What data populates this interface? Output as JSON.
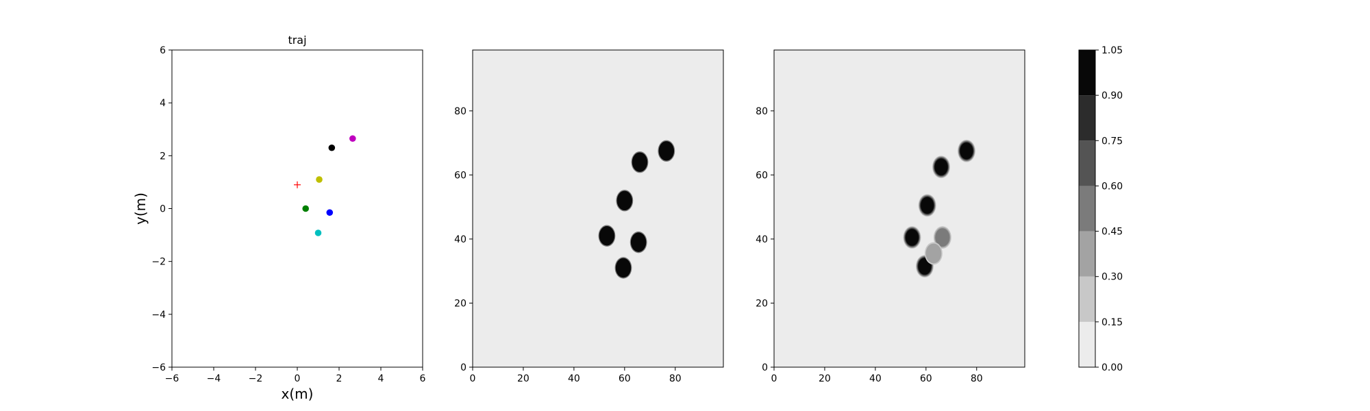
{
  "chart_data": [
    {
      "type": "scatter",
      "title": "traj",
      "xlabel": "x(m)",
      "ylabel": "y(m)",
      "xlim": [
        -6,
        6
      ],
      "ylim": [
        -6,
        6
      ],
      "xticks": [
        -6,
        -4,
        -2,
        0,
        2,
        4,
        6
      ],
      "yticks": [
        -6,
        -4,
        -2,
        0,
        2,
        4,
        6
      ],
      "grid": false,
      "series": [
        {
          "color": "#bfbf00",
          "marker": "circle",
          "points": [
            [
              1.05,
              1.1
            ]
          ]
        },
        {
          "color": "#000000",
          "marker": "circle",
          "points": [
            [
              1.65,
              2.3
            ]
          ]
        },
        {
          "color": "#bf00bf",
          "marker": "circle",
          "points": [
            [
              2.65,
              2.65
            ]
          ]
        },
        {
          "color": "#007f00",
          "marker": "circle",
          "points": [
            [
              0.4,
              0.0
            ]
          ]
        },
        {
          "color": "#0000ff",
          "marker": "circle",
          "points": [
            [
              1.55,
              -0.15
            ]
          ]
        },
        {
          "color": "#00bfbf",
          "marker": "circle",
          "points": [
            [
              1.0,
              -0.92
            ]
          ]
        },
        {
          "color": "#ff0000",
          "marker": "plus",
          "points": [
            [
              0.0,
              0.9
            ]
          ]
        }
      ]
    },
    {
      "type": "heatmap",
      "title": "",
      "xlim": [
        0,
        99
      ],
      "ylim": [
        0,
        99
      ],
      "xticks": [
        0,
        20,
        40,
        60,
        80
      ],
      "yticks": [
        0,
        20,
        40,
        60,
        80
      ],
      "background_value": 0.0,
      "blobs": [
        {
          "x": 76.5,
          "y": 67.5,
          "value": 1.0
        },
        {
          "x": 66,
          "y": 64,
          "value": 1.0
        },
        {
          "x": 60,
          "y": 52,
          "value": 1.0
        },
        {
          "x": 53,
          "y": 41,
          "value": 1.0
        },
        {
          "x": 65.5,
          "y": 39,
          "value": 1.0
        },
        {
          "x": 59.5,
          "y": 31,
          "value": 1.0
        }
      ]
    },
    {
      "type": "heatmap",
      "title": "",
      "xlim": [
        0,
        99
      ],
      "ylim": [
        0,
        99
      ],
      "xticks": [
        0,
        20,
        40,
        60,
        80
      ],
      "yticks": [
        0,
        20,
        40,
        60,
        80
      ],
      "background_value": 0.0,
      "blobs": [
        {
          "x": 76,
          "y": 67.5,
          "value": 1.0
        },
        {
          "x": 66,
          "y": 62.5,
          "value": 1.0
        },
        {
          "x": 60.5,
          "y": 50.5,
          "value": 1.0
        },
        {
          "x": 54.5,
          "y": 40.5,
          "value": 1.0
        },
        {
          "x": 59.5,
          "y": 31.5,
          "value": 1.0
        },
        {
          "x": 66.5,
          "y": 40.5,
          "value": 0.55
        },
        {
          "x": 63,
          "y": 35.5,
          "value": 0.3
        }
      ]
    },
    {
      "type": "colorbar",
      "levels": [
        0.0,
        0.15,
        0.3,
        0.45,
        0.6,
        0.75,
        0.9,
        1.05
      ],
      "tick_labels": [
        "0.00",
        "0.15",
        "0.30",
        "0.45",
        "0.60",
        "0.75",
        "0.90",
        "1.05"
      ],
      "colors": [
        "#ececec",
        "#c8c8c8",
        "#a3a3a3",
        "#7b7b7b",
        "#545454",
        "#2c2c2c",
        "#080808"
      ]
    }
  ]
}
